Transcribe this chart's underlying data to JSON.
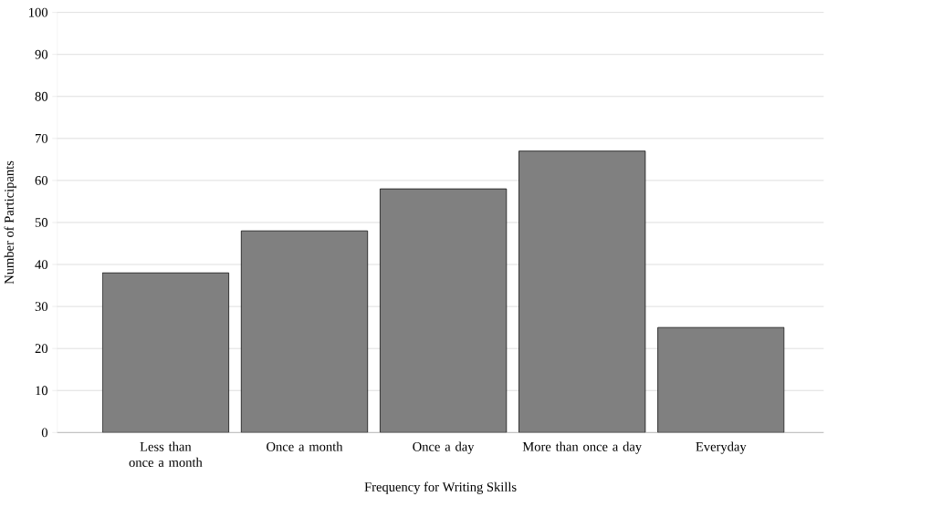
{
  "chart_data": {
    "type": "bar",
    "xlabel": "Frequency for Writing Skills",
    "ylabel": "Number of Participants",
    "categories": [
      "Less than once a month",
      "Once a month",
      "Once a day",
      "More than once a day",
      "Everyday"
    ],
    "values": [
      38,
      48,
      58,
      67,
      25
    ],
    "color": "#808080",
    "ylim": [
      0,
      100
    ],
    "yticks": [
      0,
      10,
      20,
      30,
      40,
      50,
      60,
      70,
      80,
      90,
      100
    ],
    "grid": "y"
  }
}
